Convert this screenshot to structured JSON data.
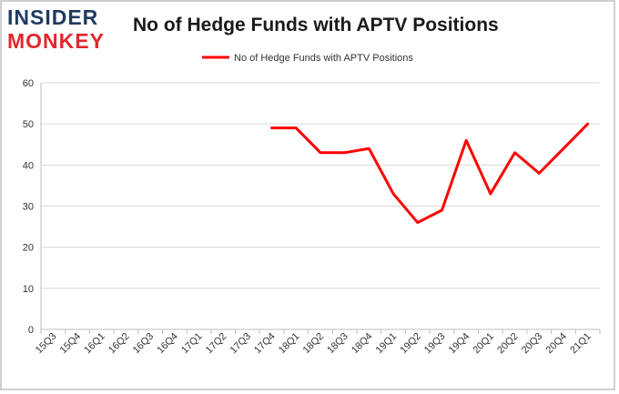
{
  "logo": {
    "line1": "INSIDER",
    "line2": "MONKEY"
  },
  "chart_data": {
    "type": "line",
    "title": "No of Hedge Funds with APTV Positions",
    "xlabel": "",
    "ylabel": "",
    "categories": [
      "15Q3",
      "15Q4",
      "16Q1",
      "16Q2",
      "16Q3",
      "16Q4",
      "17Q1",
      "17Q2",
      "17Q3",
      "17Q4",
      "18Q1",
      "18Q2",
      "18Q3",
      "18Q4",
      "19Q1",
      "19Q2",
      "19Q3",
      "19Q4",
      "20Q1",
      "20Q2",
      "20Q3",
      "20Q4",
      "21Q1"
    ],
    "series": [
      {
        "name": "No of Hedge Funds with APTV Positions",
        "values": [
          null,
          null,
          null,
          null,
          null,
          null,
          null,
          null,
          null,
          49,
          49,
          43,
          43,
          44,
          33,
          26,
          29,
          46,
          33,
          43,
          38,
          44,
          50
        ]
      }
    ],
    "ylim": [
      0,
      60
    ],
    "yticks": [
      0,
      10,
      20,
      30,
      40,
      50,
      60
    ],
    "grid": true,
    "legend": "top-center",
    "colors": {
      "line": "#ff0000",
      "grid": "#d9d9d9",
      "axis": "#bfbfbf",
      "text": "#333333"
    }
  }
}
